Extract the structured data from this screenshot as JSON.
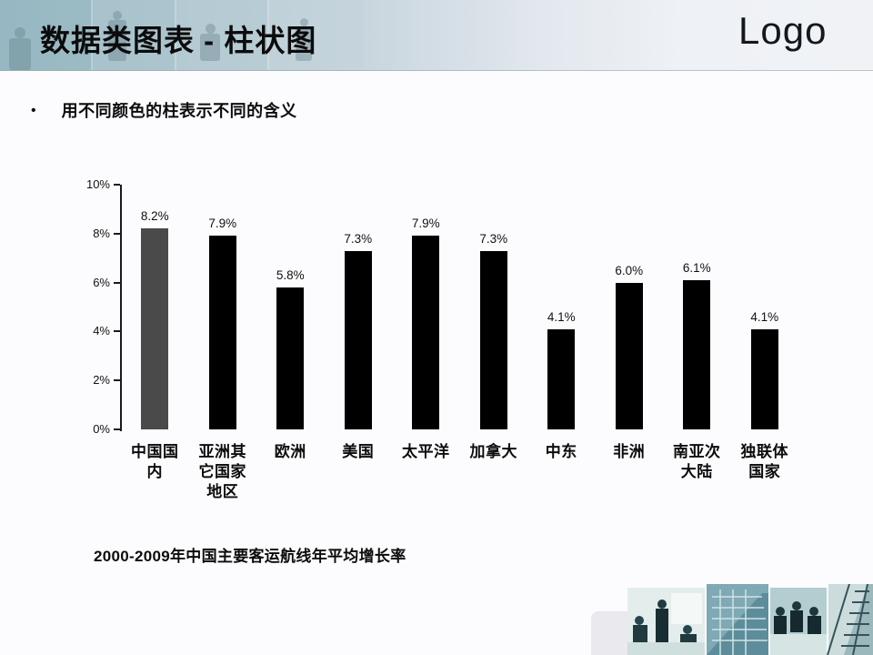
{
  "header": {
    "title": "数据类图表 - 柱状图",
    "logo": "Logo"
  },
  "bullet": {
    "marker": "•",
    "text": "用不同颜色的柱表示不同的含义"
  },
  "chart_data": {
    "type": "bar",
    "title": "",
    "caption": "2000-2009年中国主要客运航线年平均增长率",
    "categories": [
      "中国国内",
      "亚洲其它国家地区",
      "欧洲",
      "美国",
      "太平洋",
      "加拿大",
      "中东",
      "非洲",
      "南亚次大陆",
      "独联体国家"
    ],
    "values": [
      8.2,
      7.9,
      5.8,
      7.3,
      7.9,
      7.3,
      4.1,
      6.0,
      6.1,
      4.1
    ],
    "value_labels": [
      "8.2%",
      "7.9%",
      "5.8%",
      "7.3%",
      "7.9%",
      "7.3%",
      "4.1%",
      "6.0%",
      "6.1%",
      "4.1%"
    ],
    "bar_colors": [
      "#4a4a4a",
      "#000000",
      "#000000",
      "#000000",
      "#000000",
      "#000000",
      "#000000",
      "#000000",
      "#000000",
      "#000000"
    ],
    "highlight_note": "first bar uses a different gray color to show different meaning",
    "xlabel": "",
    "ylabel": "",
    "ylim": [
      0,
      10
    ],
    "ytick_values": [
      0,
      2,
      4,
      6,
      8,
      10
    ],
    "ytick_labels": [
      "0%",
      "2%",
      "4%",
      "6%",
      "8%",
      "10%"
    ],
    "grid": false,
    "legend": null
  },
  "colors": {
    "header_left": "#a2bec7",
    "header_right": "#f0f2f6",
    "highlight_bar": "#4a4a4a",
    "default_bar": "#000000",
    "photo_teal": "#9fc0c5"
  }
}
